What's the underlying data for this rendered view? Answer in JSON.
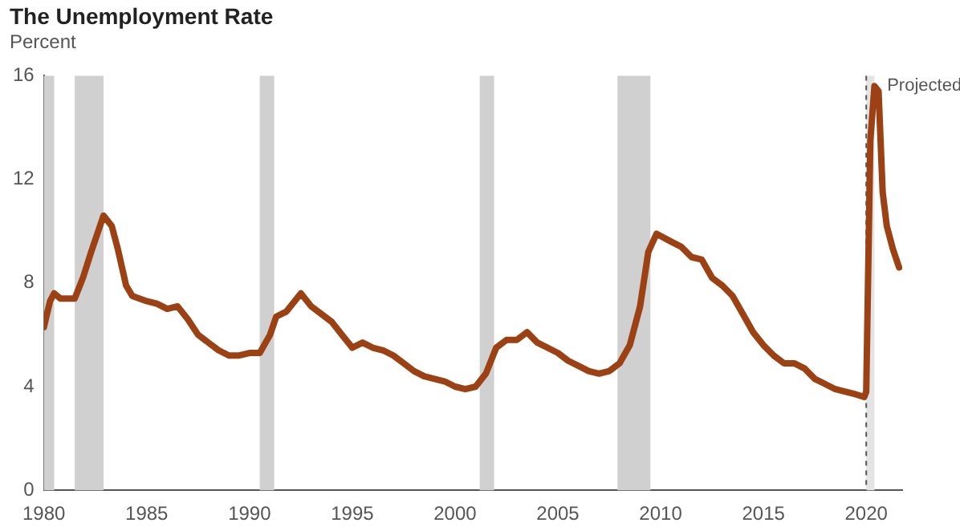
{
  "chart_data": {
    "type": "line",
    "title": "The Unemployment Rate",
    "subtitle": "Percent",
    "x": [
      1980.0,
      1980.3,
      1980.5,
      1980.8,
      1981.5,
      1981.9,
      1982.3,
      1982.9,
      1983.3,
      1983.6,
      1984.0,
      1984.3,
      1985.0,
      1985.5,
      1986.0,
      1986.5,
      1987.0,
      1987.5,
      1988.0,
      1988.5,
      1989.0,
      1989.5,
      1990.0,
      1990.5,
      1991.0,
      1991.3,
      1991.8,
      1992.5,
      1993.0,
      1993.5,
      1994.0,
      1994.5,
      1995.0,
      1995.5,
      1996.0,
      1996.5,
      1997.0,
      1997.5,
      1998.0,
      1998.5,
      1999.0,
      1999.5,
      2000.0,
      2000.5,
      2001.0,
      2001.5,
      2002.0,
      2002.5,
      2003.0,
      2003.5,
      2004.0,
      2004.5,
      2005.0,
      2005.5,
      2006.0,
      2006.5,
      2007.0,
      2007.5,
      2008.0,
      2008.5,
      2009.0,
      2009.4,
      2009.8,
      2010.5,
      2011.0,
      2011.5,
      2012.0,
      2012.5,
      2013.0,
      2013.5,
      2014.0,
      2014.5,
      2015.0,
      2015.5,
      2016.0,
      2016.5,
      2017.0,
      2017.5,
      2018.0,
      2018.5,
      2019.0,
      2019.5,
      2019.9,
      2020.0,
      2020.2,
      2020.4,
      2020.6,
      2020.8,
      2021.0,
      2021.3,
      2021.6
    ],
    "series": [
      {
        "color": "#9c4113",
        "values": [
          6.3,
          7.3,
          7.6,
          7.4,
          7.4,
          8.2,
          9.2,
          10.6,
          10.2,
          9.3,
          7.9,
          7.5,
          7.3,
          7.2,
          7.0,
          7.1,
          6.6,
          6.0,
          5.7,
          5.4,
          5.2,
          5.2,
          5.3,
          5.3,
          6.0,
          6.7,
          6.9,
          7.6,
          7.1,
          6.8,
          6.5,
          6.0,
          5.5,
          5.7,
          5.5,
          5.4,
          5.2,
          4.9,
          4.6,
          4.4,
          4.3,
          4.2,
          4.0,
          3.9,
          4.0,
          4.5,
          5.5,
          5.8,
          5.8,
          6.1,
          5.7,
          5.5,
          5.3,
          5.0,
          4.8,
          4.6,
          4.5,
          4.6,
          4.9,
          5.6,
          7.1,
          9.2,
          9.9,
          9.6,
          9.4,
          9.0,
          8.9,
          8.2,
          7.9,
          7.5,
          6.8,
          6.1,
          5.6,
          5.2,
          4.9,
          4.9,
          4.7,
          4.3,
          4.1,
          3.9,
          3.8,
          3.7,
          3.6,
          3.8,
          13.5,
          15.6,
          15.4,
          11.5,
          10.2,
          9.3,
          8.6
        ]
      }
    ],
    "xlim": [
      1980,
      2021.75
    ],
    "xticks": [
      1980,
      1985,
      1990,
      1995,
      2000,
      2005,
      2010,
      2015,
      2020
    ],
    "ylim": [
      0,
      16
    ],
    "yticks": [
      0,
      4,
      8,
      12,
      16
    ],
    "grid": false,
    "legend": false,
    "marker": "none",
    "line_style": "solid",
    "bands": [
      {
        "axis": "x",
        "from": 1980.0,
        "to": 1980.5,
        "color": "#d0d0d0"
      },
      {
        "axis": "x",
        "from": 1981.5,
        "to": 1982.9,
        "color": "#d0d0d0"
      },
      {
        "axis": "x",
        "from": 1990.5,
        "to": 1991.2,
        "color": "#d0d0d0"
      },
      {
        "axis": "x",
        "from": 2001.2,
        "to": 2001.9,
        "color": "#d0d0d0"
      },
      {
        "axis": "x",
        "from": 2007.9,
        "to": 2009.5,
        "color": "#d0d0d0"
      },
      {
        "axis": "x",
        "from": 2020.0,
        "to": 2020.4,
        "color": "#e4e4e4"
      }
    ],
    "ref_lines": [
      {
        "axis": "x",
        "value": 2020,
        "label": "Projected",
        "color": "#555555",
        "line_style": "dashed"
      }
    ]
  }
}
